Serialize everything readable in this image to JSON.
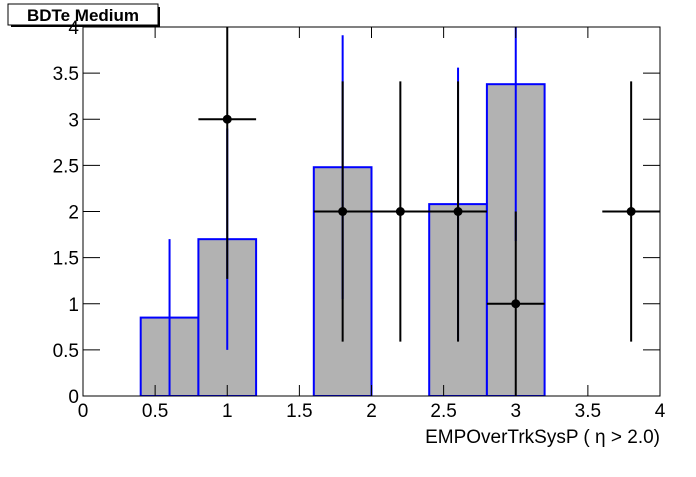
{
  "chart_data": {
    "type": "histogram",
    "title": "BDTe Medium",
    "xlabel": "EMPOverTrkSysP ( η > 2.0)",
    "bins": [
      0,
      0.4,
      0.8,
      1.2,
      1.6,
      2.0,
      2.4,
      2.8,
      3.2,
      3.6,
      4.0
    ],
    "series": [
      {
        "color": "#0000ff",
        "fill": "#b2b2b2",
        "values": [
          0,
          0.85,
          1.7,
          0,
          2.48,
          0,
          2.08,
          3.38,
          0,
          0
        ],
        "errors": [
          0,
          0.85,
          1.2,
          0,
          1.43,
          0,
          1.48,
          1.7,
          0,
          0
        ]
      },
      {
        "color": "#000000",
        "x": [
          1.0,
          1.8,
          2.2,
          2.6,
          3.0,
          3.8
        ],
        "values": [
          3,
          2,
          2,
          2,
          1,
          2
        ],
        "xerr": [
          0.2,
          0.2,
          0.2,
          0.2,
          0.2,
          0.2
        ],
        "yerr": [
          1.73,
          1.41,
          1.41,
          1.41,
          1.0,
          1.41
        ]
      }
    ],
    "xlim": [
      0,
      4
    ],
    "ylim": [
      0,
      4
    ],
    "xticks": [
      0,
      0.5,
      1,
      1.5,
      2,
      2.5,
      3,
      3.5,
      4
    ],
    "yticks": [
      0,
      0.5,
      1,
      1.5,
      2,
      2.5,
      3,
      3.5,
      4
    ]
  }
}
